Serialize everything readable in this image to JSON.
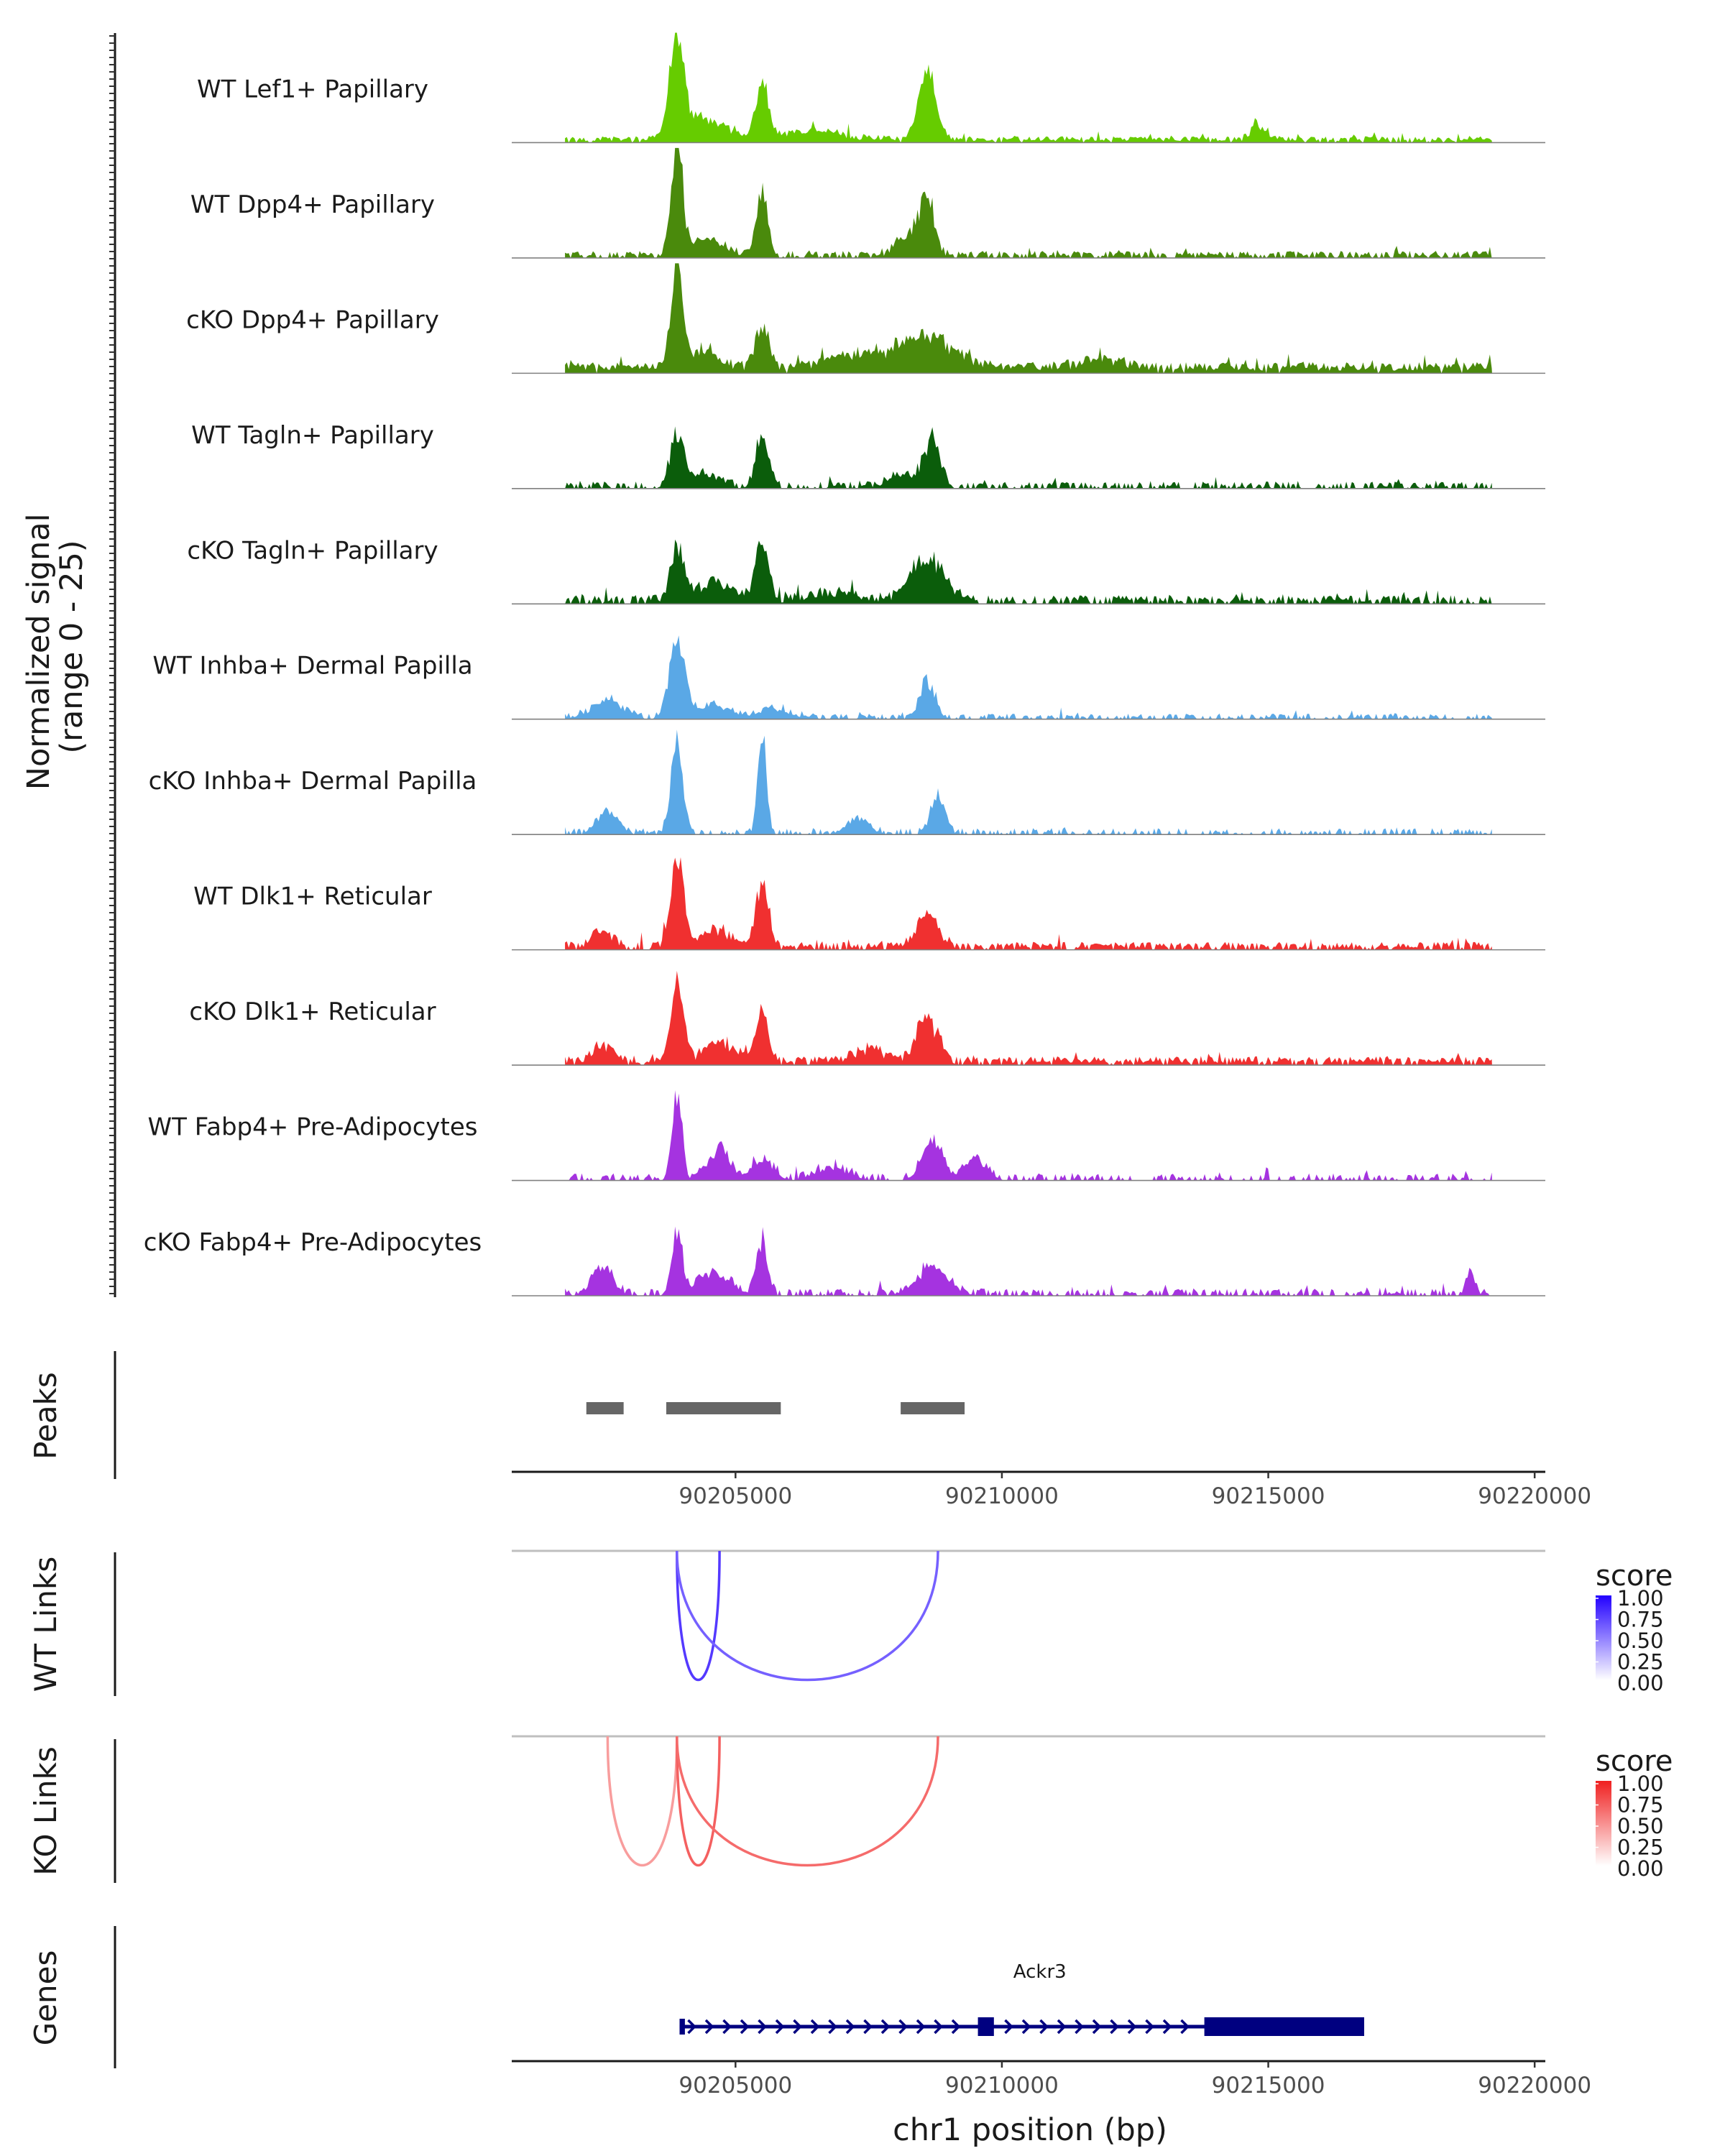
{
  "chart_data": {
    "type": "area",
    "title": "",
    "ylabel": "Normalized signal\n(range 0 - 25)",
    "ylabel_lines": [
      "Normalized signal",
      "(range 0 - 25)"
    ],
    "ylim": [
      0,
      25
    ],
    "xlabel": "chr1 position (bp)",
    "xlim": [
      90200800,
      90220200
    ],
    "xticks": [
      90205000,
      90210000,
      90215000,
      90220000
    ],
    "xtick_labels": [
      "90205000",
      "90210000",
      "90215000",
      "90220000"
    ],
    "tracks": [
      {
        "name": "WT Lef1+ Papillary",
        "color": "#66cc00",
        "peaks": [
          [
            90203900,
            25,
            120
          ],
          [
            90205500,
            14,
            110
          ],
          [
            90208600,
            16,
            160
          ],
          [
            90214800,
            3,
            150
          ],
          [
            90204400,
            5,
            400
          ],
          [
            90206500,
            2,
            600
          ]
        ],
        "base": 0.8,
        "sparse": 0.1
      },
      {
        "name": "WT Dpp4+ Papillary",
        "color": "#4a8a0c",
        "peaks": [
          [
            90203900,
            24,
            110
          ],
          [
            90205500,
            16,
            100
          ],
          [
            90208600,
            13,
            140
          ],
          [
            90208200,
            5,
            200
          ],
          [
            90204500,
            4,
            300
          ]
        ],
        "base": 0.9,
        "sparse": 0.3
      },
      {
        "name": "cKO Dpp4+ Papillary",
        "color": "#4a8a0c",
        "peaks": [
          [
            90203900,
            24,
            110
          ],
          [
            90205500,
            9,
            140
          ],
          [
            90208600,
            7,
            500
          ],
          [
            90204400,
            4,
            300
          ],
          [
            90207300,
            3,
            600
          ],
          [
            90211800,
            2,
            400
          ]
        ],
        "base": 1.4,
        "sparse": 0.05
      },
      {
        "name": "WT Tagln+ Papillary",
        "color": "#0b5d0b",
        "peaks": [
          [
            90203900,
            13,
            120
          ],
          [
            90205500,
            12,
            120
          ],
          [
            90208700,
            10,
            150
          ],
          [
            90204400,
            3,
            300
          ],
          [
            90208200,
            3,
            300
          ]
        ],
        "base": 0.9,
        "sparse": 0.45
      },
      {
        "name": "cKO Tagln+ Papillary",
        "color": "#0b5d0b",
        "peaks": [
          [
            90203900,
            13,
            120
          ],
          [
            90205500,
            15,
            110
          ],
          [
            90208600,
            10,
            300
          ],
          [
            90204600,
            4,
            400
          ],
          [
            90206800,
            2,
            500
          ]
        ],
        "base": 1.1,
        "sparse": 0.25
      },
      {
        "name": "WT Inhba+ Dermal Papilla",
        "color": "#5aa8e6",
        "peaks": [
          [
            90203900,
            17,
            150
          ],
          [
            90208600,
            9,
            140
          ],
          [
            90202600,
            4,
            300
          ],
          [
            90204600,
            3,
            300
          ],
          [
            90205700,
            2,
            300
          ]
        ],
        "base": 0.7,
        "sparse": 0.45
      },
      {
        "name": "cKO Inhba+ Dermal Papilla",
        "color": "#5aa8e6",
        "peaks": [
          [
            90203900,
            20,
            110
          ],
          [
            90205500,
            22,
            80
          ],
          [
            90208800,
            10,
            120
          ],
          [
            90202600,
            5,
            200
          ],
          [
            90207300,
            4,
            200
          ]
        ],
        "base": 0.8,
        "sparse": 0.55
      },
      {
        "name": "WT Dlk1+ Reticular",
        "color": "#f03030",
        "peaks": [
          [
            90203900,
            20,
            120
          ],
          [
            90205500,
            15,
            110
          ],
          [
            90208600,
            7,
            220
          ],
          [
            90202500,
            4,
            200
          ],
          [
            90204600,
            4,
            300
          ]
        ],
        "base": 1.0,
        "sparse": 0.3
      },
      {
        "name": "cKO Dlk1+ Reticular",
        "color": "#f03030",
        "peaks": [
          [
            90203900,
            17,
            120
          ],
          [
            90205500,
            11,
            120
          ],
          [
            90208600,
            10,
            200
          ],
          [
            90202500,
            4,
            200
          ],
          [
            90204700,
            4,
            300
          ],
          [
            90207500,
            3,
            300
          ]
        ],
        "base": 1.1,
        "sparse": 0.15
      },
      {
        "name": "WT Fabp4+ Pre-Adipocytes",
        "color": "#a533e0",
        "peaks": [
          [
            90203900,
            22,
            90
          ],
          [
            90204700,
            7,
            200
          ],
          [
            90205500,
            5,
            200
          ],
          [
            90208700,
            8,
            200
          ],
          [
            90209500,
            5,
            200
          ],
          [
            90206800,
            3,
            300
          ]
        ],
        "base": 0.9,
        "sparse": 0.55
      },
      {
        "name": "cKO Fabp4+ Pre-Adipocytes",
        "color": "#a533e0",
        "peaks": [
          [
            90203900,
            15,
            100
          ],
          [
            90205500,
            13,
            100
          ],
          [
            90202500,
            6,
            200
          ],
          [
            90204600,
            5,
            300
          ],
          [
            90208700,
            6,
            300
          ],
          [
            90218800,
            5,
            80
          ]
        ],
        "base": 0.9,
        "sparse": 0.5
      }
    ],
    "peaks_track": {
      "label": "Peaks",
      "color": "#666666",
      "regions": [
        [
          90202200,
          90202900
        ],
        [
          90203700,
          90205850
        ],
        [
          90208100,
          90209300
        ]
      ]
    },
    "links": [
      {
        "label": "WT Links",
        "legend_title": "score",
        "color_low": "#ffffff",
        "color_high": "#2200ff",
        "legend_ticks": [
          "1.00",
          "0.75",
          "0.50",
          "0.25",
          "0.00"
        ],
        "arcs": [
          {
            "start": 90203900,
            "end": 90204700,
            "score": 0.7
          },
          {
            "start": 90203900,
            "end": 90208800,
            "score": 0.5
          }
        ]
      },
      {
        "label": "KO Links",
        "legend_title": "score",
        "color_low": "#ffffff",
        "color_high": "#f02020",
        "legend_ticks": [
          "1.00",
          "0.75",
          "0.50",
          "0.25",
          "0.00"
        ],
        "arcs": [
          {
            "start": 90202600,
            "end": 90203900,
            "score": 0.25
          },
          {
            "start": 90203900,
            "end": 90204700,
            "score": 0.62
          },
          {
            "start": 90203900,
            "end": 90208800,
            "score": 0.55
          }
        ]
      }
    ],
    "genes": {
      "label": "Genes",
      "color": "#000080",
      "items": [
        {
          "name": "Ackr3",
          "start": 90203950,
          "end": 90216800,
          "strand": "+",
          "exons": [
            [
              90203950,
              90204050
            ],
            [
              90209550,
              90209850
            ],
            [
              90213800,
              90216800
            ]
          ]
        }
      ]
    }
  }
}
